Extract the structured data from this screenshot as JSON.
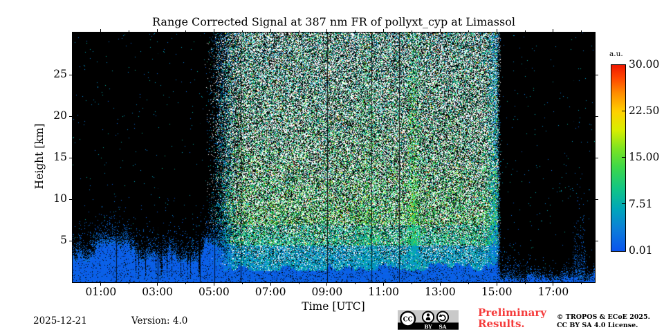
{
  "title": "Range Corrected Signal at 387 nm FR of pollyxt_cyp at Limassol",
  "colorbar": {
    "unit_label": "a.u.",
    "tick_labels": [
      "30.00",
      "22.50",
      "15.00",
      "7.51",
      "0.01"
    ]
  },
  "footer": {
    "date": "2025-12-21",
    "version_label": "Version: 4.0",
    "preliminary_line1": "Preliminary",
    "preliminary_line2": "Results.",
    "copyright_line1": "© TROPOS & ECoE 2025.",
    "copyright_line2": "CC BY SA 4.0 License.",
    "badge": {
      "cc": "CC",
      "by": "BY",
      "sa": "SA"
    }
  },
  "colors": {
    "blue_band": "#1251e1",
    "preliminary_red": "#f53b3b",
    "badge_gray": "#c9c9c9",
    "text": "#000000",
    "background": "#ffffff"
  },
  "chart_data": {
    "type": "heatmap",
    "title": "Range Corrected Signal at 387 nm FR of pollyxt_cyp at Limassol",
    "xlabel": "Time [UTC]",
    "ylabel": "Height [km]",
    "x_range_hours": [
      0,
      18.47
    ],
    "y_range_km": [
      0,
      30.1
    ],
    "x_major_ticks": [
      {
        "hour": 1,
        "label": "01:00"
      },
      {
        "hour": 3,
        "label": "03:00"
      },
      {
        "hour": 5,
        "label": "05:00"
      },
      {
        "hour": 7,
        "label": "07:00"
      },
      {
        "hour": 9,
        "label": "09:00"
      },
      {
        "hour": 11,
        "label": "11:00"
      },
      {
        "hour": 13,
        "label": "13:00"
      },
      {
        "hour": 15,
        "label": "15:00"
      },
      {
        "hour": 17,
        "label": "17:00"
      }
    ],
    "x_minor_tick_hours": [
      2,
      4,
      6,
      8,
      10,
      12,
      14,
      16,
      18
    ],
    "y_major_ticks_km": [
      5,
      10,
      15,
      20,
      25
    ],
    "colorbar_scale": {
      "min": 0.01,
      "max": 30.0,
      "unit": "a.u.",
      "ticks": [
        30.0,
        22.5,
        15.0,
        7.51,
        0.01
      ]
    },
    "colormap_stops": [
      {
        "pos": 0.0,
        "color": "#0a54ee"
      },
      {
        "pos": 0.12,
        "color": "#0c7fd8"
      },
      {
        "pos": 0.22,
        "color": "#00a4bc"
      },
      {
        "pos": 0.33,
        "color": "#10c488"
      },
      {
        "pos": 0.45,
        "color": "#3cd84a"
      },
      {
        "pos": 0.55,
        "color": "#7ce422"
      },
      {
        "pos": 0.65,
        "color": "#d8ee00"
      },
      {
        "pos": 0.75,
        "color": "#ffd000"
      },
      {
        "pos": 0.85,
        "color": "#ff8c00"
      },
      {
        "pos": 0.93,
        "color": "#ff4600"
      },
      {
        "pos": 1.0,
        "color": "#ef1800"
      }
    ],
    "regions": {
      "night_morning": {
        "start_hour": 0,
        "end_hour": 4.62,
        "band_top_km": 3.55,
        "description": "black sky, solid blue aerosol band below ~4 km"
      },
      "daylight": {
        "start_hour": 4.62,
        "full_hour": 5.66,
        "end_hour": 14.98,
        "blue_band_top_km": 1.9,
        "description": "dense solar-background speckle (white/black with colored noise)"
      },
      "night_evening": {
        "start_hour": 15.14,
        "end_hour": 18.47,
        "band_top_km": 0.8,
        "burst": {
          "start_hour": 17.68,
          "end_hour": 18.12,
          "top_km": 4.5
        },
        "description": "black sky, shallow speckled blue band below ~2 km"
      }
    },
    "gap_streaks": {
      "start_hour": 2.15,
      "end_hour": 4.55,
      "probability": 0.22
    },
    "gap_line_hours": [
      1.53,
      3.02,
      4.5,
      5.01,
      5.95,
      9.0,
      10.56,
      11.54,
      16.02,
      17.72
    ],
    "dense_columns": [
      {
        "hour": 12.05,
        "amp": 0.75,
        "width": 0.18
      },
      {
        "hour": 10.45,
        "amp": 0.3,
        "width": 0.3
      }
    ],
    "dim_column": {
      "hour": 5.75,
      "amp": 0.55,
      "width": 0.22
    },
    "render_seed": 20251221
  }
}
